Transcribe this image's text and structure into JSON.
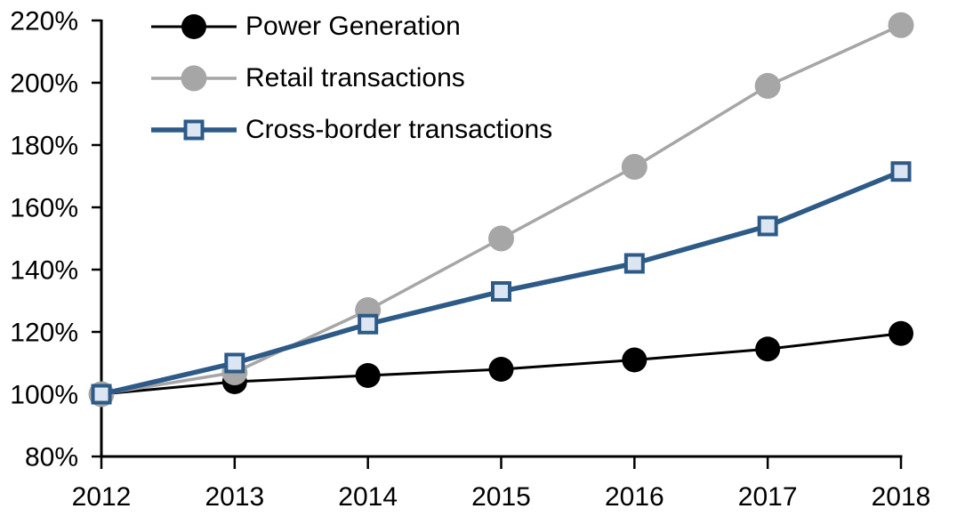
{
  "chart_data": {
    "type": "line",
    "title": "",
    "xlabel": "",
    "ylabel": "",
    "x": [
      "2012",
      "2013",
      "2014",
      "2015",
      "2016",
      "2017",
      "2018"
    ],
    "ylim": [
      80,
      220
    ],
    "yticks": [
      {
        "value": 220,
        "label": "220%"
      },
      {
        "value": 200,
        "label": "200%"
      },
      {
        "value": 180,
        "label": "180%"
      },
      {
        "value": 160,
        "label": "160%"
      },
      {
        "value": 140,
        "label": "140%"
      },
      {
        "value": 120,
        "label": "120%"
      },
      {
        "value": 100,
        "label": "100%"
      },
      {
        "value": 80,
        "label": "80%"
      }
    ],
    "grid": false,
    "legend_position": "top-left",
    "background_color": "#FFFFFF",
    "axis_color": "#000000",
    "series": [
      {
        "name": "Power Generation",
        "values": [
          100,
          104,
          106,
          108,
          111,
          114.5,
          119.5
        ],
        "color": "#000000",
        "marker": "circle",
        "marker_fill": "#000000",
        "marker_size": 28,
        "line_width": 3
      },
      {
        "name": "Retail transactions",
        "values": [
          100,
          107,
          127,
          150,
          173,
          199,
          218.5
        ],
        "color": "#A6A6A6",
        "marker": "circle",
        "marker_fill": "#A6A6A6",
        "marker_size": 29,
        "line_width": 3.5
      },
      {
        "name": "Cross-border transactions",
        "values": [
          100,
          110,
          122.5,
          133,
          142,
          154,
          171.5
        ],
        "color": "#2D5A87",
        "marker": "square",
        "marker_fill": "#DCE6F2",
        "marker_size": 23,
        "line_width": 5.5
      }
    ]
  }
}
